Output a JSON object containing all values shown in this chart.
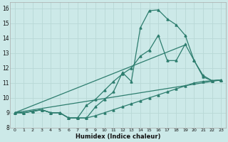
{
  "background_color": "#cce9e8",
  "grid_color": "#b8d8d6",
  "line_color": "#2d7d6e",
  "xlabel": "Humidex (Indice chaleur)",
  "xlim": [
    -0.5,
    23.5
  ],
  "ylim": [
    8,
    16.4
  ],
  "yticks": [
    8,
    9,
    10,
    11,
    12,
    13,
    14,
    15,
    16
  ],
  "xticks": [
    0,
    1,
    2,
    3,
    4,
    5,
    6,
    7,
    8,
    9,
    10,
    11,
    12,
    13,
    14,
    15,
    16,
    17,
    18,
    19,
    20,
    21,
    22,
    23
  ],
  "curve_jagged_x": [
    0,
    1,
    2,
    3,
    4,
    5,
    6,
    7,
    8,
    9,
    10,
    11,
    12,
    13,
    14,
    15,
    16,
    17,
    18,
    19,
    20,
    21,
    22,
    23
  ],
  "curve_jagged_y": [
    9.0,
    9.0,
    9.1,
    9.2,
    9.0,
    9.0,
    8.65,
    8.65,
    8.65,
    9.4,
    9.9,
    10.4,
    11.7,
    11.1,
    14.7,
    15.85,
    15.9,
    15.3,
    14.9,
    14.2,
    12.5,
    11.4,
    11.15,
    11.2
  ],
  "curve_mid_x": [
    0,
    1,
    2,
    3,
    4,
    5,
    6,
    7,
    8,
    9,
    10,
    11,
    12,
    13,
    14,
    15,
    16,
    17,
    18,
    19,
    20,
    21,
    22,
    23
  ],
  "curve_mid_y": [
    9.0,
    9.0,
    9.1,
    9.2,
    9.0,
    9.0,
    8.65,
    8.65,
    9.5,
    9.9,
    10.5,
    11.1,
    11.6,
    12.0,
    12.8,
    13.2,
    14.2,
    12.5,
    12.5,
    13.6,
    12.5,
    11.5,
    11.15,
    11.2
  ],
  "curve_low_x": [
    0,
    1,
    2,
    3,
    4,
    5,
    6,
    7,
    8,
    9,
    10,
    11,
    12,
    13,
    14,
    15,
    16,
    17,
    18,
    19,
    20,
    21,
    22,
    23
  ],
  "curve_low_y": [
    9.0,
    9.0,
    9.1,
    9.2,
    9.0,
    9.0,
    8.65,
    8.65,
    8.65,
    8.8,
    9.0,
    9.2,
    9.4,
    9.6,
    9.8,
    10.0,
    10.2,
    10.4,
    10.6,
    10.8,
    11.0,
    11.1,
    11.15,
    11.2
  ],
  "line1_x": [
    0,
    23
  ],
  "line1_y": [
    9.0,
    11.2
  ],
  "line2_x": [
    0,
    19
  ],
  "line2_y": [
    9.0,
    13.55
  ]
}
